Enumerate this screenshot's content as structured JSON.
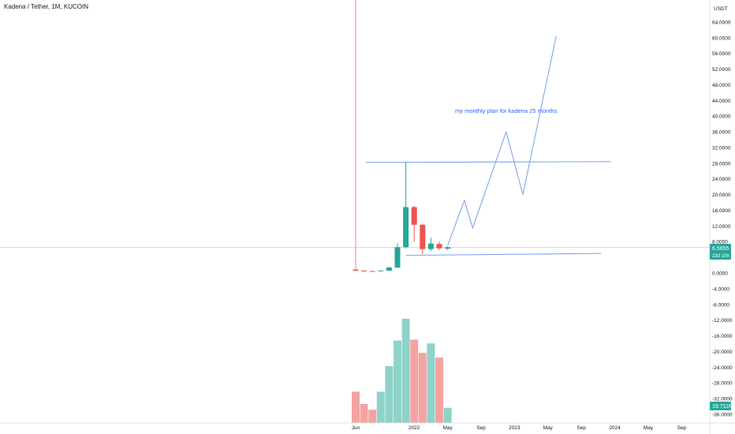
{
  "header": {
    "symbol_title": "Kadena / Tether, 1M, KUCOIN",
    "currency": "USDT"
  },
  "colors": {
    "up": "#26a69a",
    "down": "#ef5350",
    "up_vol": "#8fd2c9",
    "down_vol": "#f5a3a1",
    "drawing": "#7ea6f0",
    "annotation": "#2962ff",
    "red_line": "#f08080"
  },
  "price_tag": {
    "value": "6.5655",
    "countdown": "23d 10h"
  },
  "volume_tag": {
    "value": "19.711M"
  },
  "annotation_text": "my monthly plan for kadena 25 months",
  "chart_data": {
    "type": "candlestick",
    "y_ticks": [
      "64.0000",
      "60.0000",
      "56.0000",
      "52.0000",
      "48.0000",
      "44.0000",
      "40.0000",
      "36.0000",
      "32.0000",
      "28.0000",
      "24.0000",
      "20.0000",
      "16.0000",
      "12.0000",
      "8.0000",
      "4.0000",
      "0.0000",
      "-4.0000",
      "-8.0000",
      "-12.0000",
      "-16.0000",
      "-20.0000",
      "-24.0000",
      "-28.0000",
      "-32.0000",
      "-36.0000"
    ],
    "y_tick_values": [
      64,
      60,
      56,
      52,
      48,
      44,
      40,
      36,
      32,
      28,
      24,
      20,
      16,
      12,
      8,
      4,
      0,
      -4,
      -8,
      -12,
      -16,
      -20,
      -24,
      -28,
      -32,
      -36
    ],
    "x_ticks": [
      "Jun",
      "2022",
      "May",
      "Sep",
      "2023",
      "May",
      "Sep",
      "2024",
      "May",
      "Sep"
    ],
    "x_tick_months": [
      0,
      7,
      11,
      15,
      19,
      23,
      27,
      31,
      35,
      39
    ],
    "candles": [
      {
        "m": 0,
        "o": 0.9,
        "h": 1.0,
        "l": 0.5,
        "c": 0.6
      },
      {
        "m": 1,
        "o": 0.6,
        "h": 0.7,
        "l": 0.4,
        "c": 0.5
      },
      {
        "m": 2,
        "o": 0.5,
        "h": 0.6,
        "l": 0.4,
        "c": 0.45
      },
      {
        "m": 3,
        "o": 0.45,
        "h": 0.7,
        "l": 0.4,
        "c": 0.65
      },
      {
        "m": 4,
        "o": 0.6,
        "h": 1.6,
        "l": 0.5,
        "c": 1.4
      },
      {
        "m": 5,
        "o": 1.4,
        "h": 7.6,
        "l": 1.2,
        "c": 6.6
      },
      {
        "m": 6,
        "o": 6.6,
        "h": 28.2,
        "l": 6.2,
        "c": 16.8
      },
      {
        "m": 7,
        "o": 16.8,
        "h": 17.2,
        "l": 8.0,
        "c": 12.3
      },
      {
        "m": 8,
        "o": 12.3,
        "h": 12.6,
        "l": 4.8,
        "c": 6.1
      },
      {
        "m": 9,
        "o": 6.1,
        "h": 9.0,
        "l": 5.6,
        "c": 7.5
      },
      {
        "m": 10,
        "o": 7.4,
        "h": 8.0,
        "l": 5.8,
        "c": 6.3
      },
      {
        "m": 11,
        "o": 6.2,
        "h": 6.8,
        "l": 5.8,
        "c": 6.5655
      }
    ],
    "volume_bars": [
      {
        "m": 0,
        "dir": "down",
        "v": 3.3
      },
      {
        "m": 1,
        "dir": "down",
        "v": 2.0
      },
      {
        "m": 2,
        "dir": "down",
        "v": 1.4
      },
      {
        "m": 3,
        "dir": "up",
        "v": 3.3
      },
      {
        "m": 4,
        "dir": "up",
        "v": 6.0
      },
      {
        "m": 5,
        "dir": "up",
        "v": 8.7
      },
      {
        "m": 6,
        "dir": "up",
        "v": 11.0
      },
      {
        "m": 7,
        "dir": "down",
        "v": 8.8
      },
      {
        "m": 8,
        "dir": "down",
        "v": 7.4
      },
      {
        "m": 9,
        "dir": "up",
        "v": 8.4
      },
      {
        "m": 10,
        "dir": "down",
        "v": 6.9
      },
      {
        "m": 11,
        "dir": "up",
        "v": 1.6
      }
    ],
    "drawings": {
      "plan_path": [
        [
          11,
          7.0
        ],
        [
          13,
          18.5
        ],
        [
          14,
          11.5
        ],
        [
          18,
          36.0
        ],
        [
          20,
          20.0
        ],
        [
          24,
          60.5
        ]
      ],
      "resistance_line": [
        [
          5,
          28.2
        ],
        [
          29,
          28.2
        ]
      ],
      "support_line": [
        [
          6,
          4.5
        ],
        [
          27,
          5.0
        ]
      ],
      "vertical_line_month": 0
    }
  }
}
